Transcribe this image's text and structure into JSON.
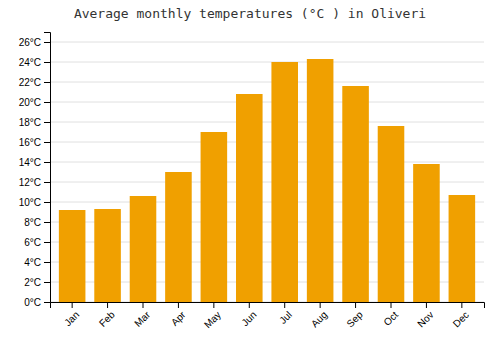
{
  "chart_data": {
    "type": "bar",
    "title": "Average monthly temperatures (°C ) in Oliveri",
    "categories": [
      "Jan",
      "Feb",
      "Mar",
      "Apr",
      "May",
      "Jun",
      "Jul",
      "Aug",
      "Sep",
      "Oct",
      "Nov",
      "Dec"
    ],
    "values": [
      9.2,
      9.3,
      10.6,
      13.0,
      17.0,
      20.8,
      24.0,
      24.3,
      21.6,
      17.6,
      13.8,
      10.7
    ],
    "color": "#F0A000",
    "ylim": [
      0,
      27
    ],
    "yticks": [
      {
        "value": 0,
        "label": "0°C"
      },
      {
        "value": 2,
        "label": "2°C"
      },
      {
        "value": 4,
        "label": "4°C"
      },
      {
        "value": 6,
        "label": "6°C"
      },
      {
        "value": 8,
        "label": "8°C"
      },
      {
        "value": 10,
        "label": "10°C"
      },
      {
        "value": 12,
        "label": "12°C"
      },
      {
        "value": 14,
        "label": "14°C"
      },
      {
        "value": 16,
        "label": "16°C"
      },
      {
        "value": 18,
        "label": "18°C"
      },
      {
        "value": 20,
        "label": "20°C"
      },
      {
        "value": 22,
        "label": "22°C"
      },
      {
        "value": 24,
        "label": "24°C"
      },
      {
        "value": 26,
        "label": "26°C"
      }
    ],
    "grid": true
  }
}
